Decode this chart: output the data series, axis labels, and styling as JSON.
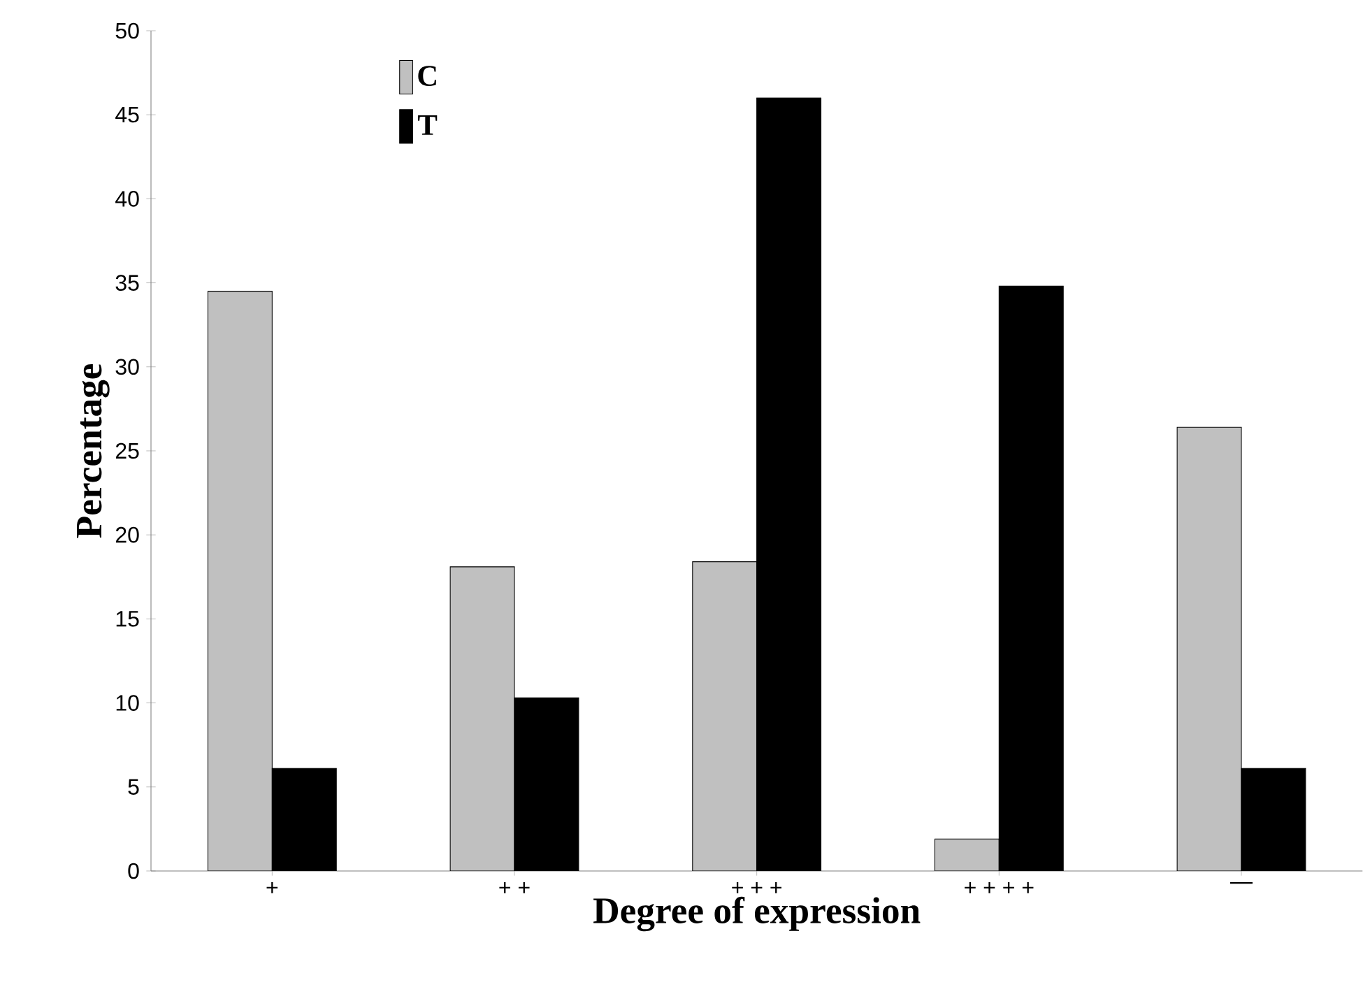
{
  "chart_data": {
    "type": "bar",
    "xlabel": "Degree of expression",
    "ylabel": "Percentage",
    "categories": [
      "+",
      "+ +",
      "+ + +",
      "+ + + +",
      "—"
    ],
    "series": [
      {
        "name": "C",
        "color": "#c0c0c0",
        "values": [
          34.5,
          18.1,
          18.4,
          1.9,
          26.4
        ]
      },
      {
        "name": "T",
        "color": "#000000",
        "values": [
          6.1,
          10.3,
          46,
          34.8,
          6.1
        ]
      }
    ],
    "ylim": [
      0,
      50
    ],
    "yticks": [
      0,
      5,
      10,
      15,
      20,
      25,
      30,
      35,
      40,
      45,
      50
    ],
    "grid": false,
    "legend": "top left"
  }
}
